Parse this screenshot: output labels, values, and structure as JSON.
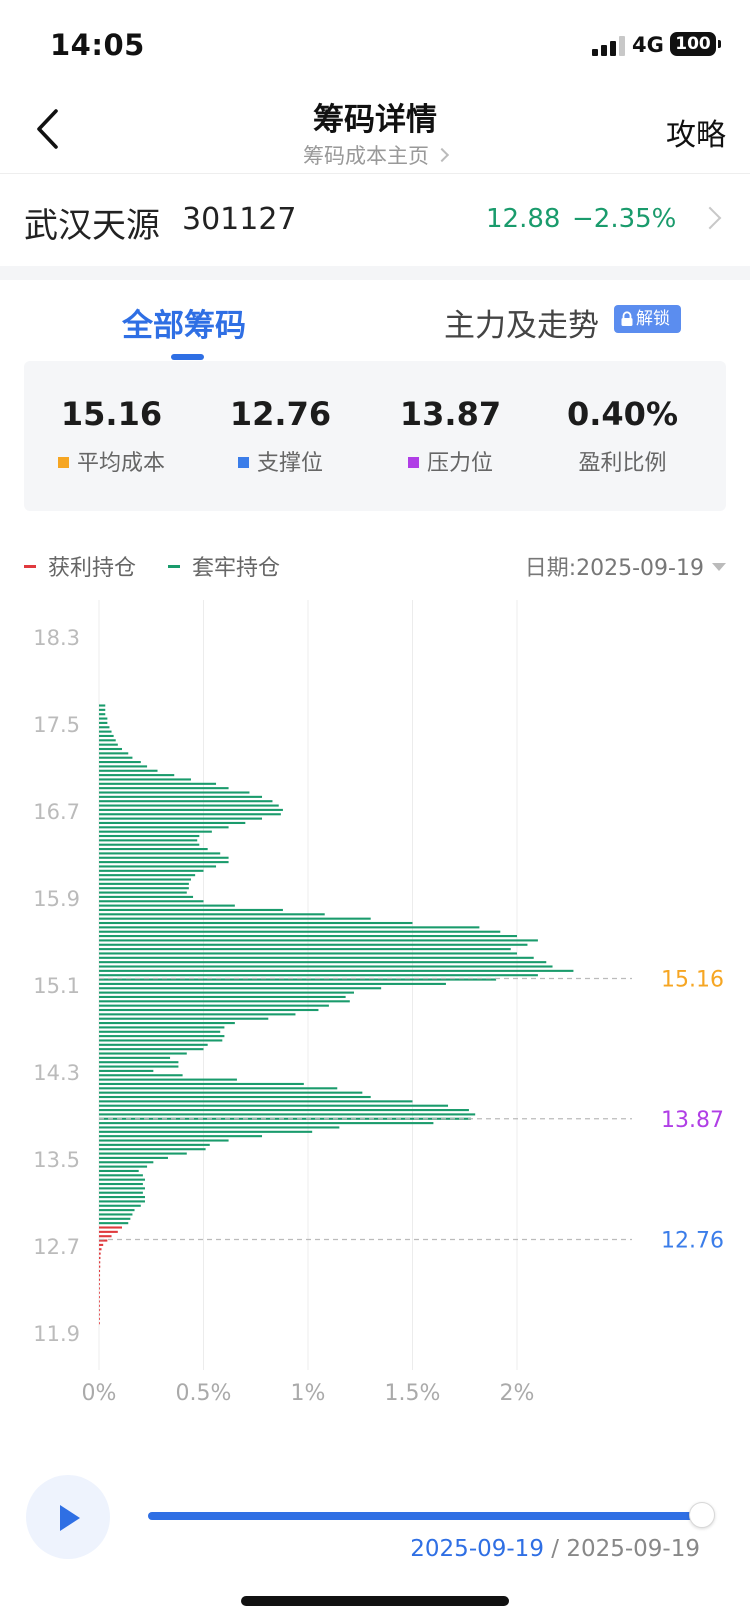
{
  "status_bar": {
    "time": "14:05",
    "network": "4G",
    "battery": "100"
  },
  "nav": {
    "title": "筹码详情",
    "subtitle": "筹码成本主页",
    "right_link": "攻略"
  },
  "stock": {
    "name": "武汉天源",
    "code": "301127",
    "price": "12.88",
    "change": "−2.35%"
  },
  "tabs": [
    {
      "label": "全部筹码",
      "active": true
    },
    {
      "label": "主力及走势",
      "active": false,
      "badge": "解锁"
    }
  ],
  "stats": [
    {
      "value": "15.16",
      "label": "平均成本",
      "color": "#f6a623"
    },
    {
      "value": "12.76",
      "label": "支撑位",
      "color": "#3b7de9"
    },
    {
      "value": "13.87",
      "label": "压力位",
      "color": "#b03ee6"
    },
    {
      "value": "0.40%",
      "label": "盈利比例",
      "color": ""
    }
  ],
  "legend": [
    {
      "label": "获利持仓",
      "color": "#e03a3e"
    },
    {
      "label": "套牢持仓",
      "color": "#1a9b6c"
    }
  ],
  "date_picker": {
    "label": "日期:2025-09-19"
  },
  "chart_data": {
    "type": "bar",
    "orientation": "horizontal",
    "x_tick_labels": [
      "0%",
      "0.5%",
      "1%",
      "1.5%",
      "2%"
    ],
    "x_range": [
      0,
      2.5
    ],
    "y_tick_labels": [
      "18.3",
      "17.5",
      "16.7",
      "15.9",
      "15.1",
      "14.3",
      "13.5",
      "12.7",
      "11.9"
    ],
    "y_range": [
      11.4,
      18.8
    ],
    "grid": "vertical",
    "reference_lines": [
      {
        "price": 15.16,
        "label": "15.16",
        "color": "#f6a623"
      },
      {
        "price": 13.87,
        "label": "13.87",
        "color": "#b03ee6"
      },
      {
        "price": 12.76,
        "label": "12.76",
        "color": "#3b7de9"
      }
    ],
    "profit_color": "#e03a3e",
    "trapped_color": "#1a9b6c",
    "current_price": 12.88,
    "profit_series": {
      "prices": [
        11.99,
        12.03,
        12.07,
        12.11,
        12.15,
        12.19,
        12.23,
        12.27,
        12.31,
        12.35,
        12.39,
        12.43,
        12.47,
        12.51,
        12.55,
        12.59,
        12.63,
        12.67,
        12.71,
        12.75,
        12.79,
        12.83,
        12.87
      ],
      "values": [
        0.004,
        0.004,
        0.004,
        0.004,
        0.004,
        0.004,
        0.004,
        0.004,
        0.004,
        0.004,
        0.005,
        0.005,
        0.005,
        0.006,
        0.006,
        0.007,
        0.008,
        0.012,
        0.02,
        0.04,
        0.06,
        0.09,
        0.11
      ]
    },
    "trapped_series": {
      "prices": [
        12.91,
        12.95,
        12.99,
        13.03,
        13.07,
        13.11,
        13.15,
        13.19,
        13.23,
        13.27,
        13.31,
        13.35,
        13.39,
        13.43,
        13.47,
        13.51,
        13.55,
        13.59,
        13.63,
        13.67,
        13.71,
        13.75,
        13.79,
        13.83,
        13.87,
        13.91,
        13.95,
        13.99,
        14.03,
        14.07,
        14.11,
        14.15,
        14.19,
        14.23,
        14.27,
        14.31,
        14.35,
        14.39,
        14.43,
        14.47,
        14.51,
        14.55,
        14.59,
        14.63,
        14.67,
        14.71,
        14.75,
        14.79,
        14.83,
        14.87,
        14.91,
        14.95,
        14.99,
        15.03,
        15.07,
        15.11,
        15.15,
        15.19,
        15.23,
        15.27,
        15.31,
        15.35,
        15.39,
        15.43,
        15.47,
        15.51,
        15.55,
        15.59,
        15.63,
        15.67,
        15.71,
        15.75,
        15.79,
        15.83,
        15.87,
        15.91,
        15.95,
        15.99,
        16.03,
        16.07,
        16.11,
        16.15,
        16.19,
        16.23,
        16.27,
        16.31,
        16.35,
        16.39,
        16.43,
        16.47,
        16.51,
        16.55,
        16.59,
        16.63,
        16.67,
        16.71,
        16.75,
        16.79,
        16.83,
        16.87,
        16.91,
        16.95,
        16.99,
        17.03,
        17.07,
        17.11,
        17.15,
        17.19,
        17.23,
        17.27,
        17.31,
        17.35,
        17.39,
        17.43,
        17.47,
        17.51,
        17.55,
        17.59,
        17.63,
        17.67
      ],
      "values": [
        0.14,
        0.15,
        0.16,
        0.17,
        0.2,
        0.22,
        0.22,
        0.21,
        0.22,
        0.21,
        0.22,
        0.21,
        0.19,
        0.23,
        0.26,
        0.33,
        0.42,
        0.51,
        0.53,
        0.62,
        0.78,
        1.02,
        1.15,
        1.6,
        1.78,
        1.8,
        1.77,
        1.67,
        1.5,
        1.3,
        1.26,
        1.14,
        0.98,
        0.66,
        0.4,
        0.26,
        0.38,
        0.38,
        0.34,
        0.42,
        0.5,
        0.52,
        0.59,
        0.6,
        0.58,
        0.6,
        0.65,
        0.81,
        0.94,
        1.05,
        1.1,
        1.2,
        1.18,
        1.22,
        1.35,
        1.66,
        1.9,
        2.1,
        2.27,
        2.17,
        2.14,
        2.08,
        2.0,
        1.97,
        2.05,
        2.1,
        2.0,
        1.92,
        1.82,
        1.5,
        1.3,
        1.08,
        0.88,
        0.65,
        0.5,
        0.45,
        0.42,
        0.43,
        0.43,
        0.44,
        0.46,
        0.5,
        0.56,
        0.62,
        0.62,
        0.58,
        0.52,
        0.48,
        0.47,
        0.48,
        0.54,
        0.62,
        0.7,
        0.78,
        0.87,
        0.88,
        0.86,
        0.83,
        0.78,
        0.72,
        0.62,
        0.56,
        0.44,
        0.36,
        0.28,
        0.23,
        0.2,
        0.16,
        0.14,
        0.11,
        0.09,
        0.08,
        0.07,
        0.06,
        0.05,
        0.04,
        0.04,
        0.03,
        0.03,
        0.03
      ]
    }
  },
  "playback": {
    "current_date": "2025-09-19",
    "separator": "/",
    "end_date": "2025-09-19",
    "progress": 1.0
  }
}
